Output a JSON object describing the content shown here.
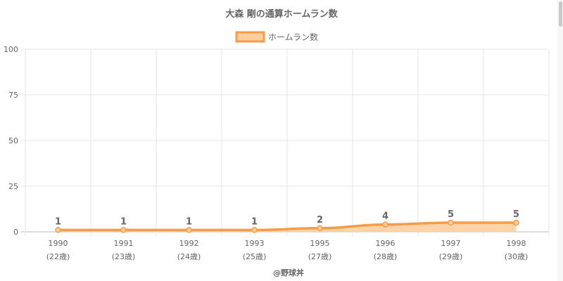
{
  "colors": {
    "line": "#f79b46",
    "fill": "#fdcf9e",
    "grid": "#e6e6e6",
    "text": "#666666",
    "label": "#666666"
  },
  "chart_data": {
    "type": "area",
    "title": "大森 剛の通算ホームラン数",
    "legend": {
      "position": "top",
      "label": "ホームラン数"
    },
    "x": [
      "1990",
      "1991",
      "1992",
      "1993",
      "1995",
      "1996",
      "1997",
      "1998"
    ],
    "x_sub": [
      "(22歳)",
      "(23歳)",
      "(24歳)",
      "(25歳)",
      "(27歳)",
      "(28歳)",
      "(29歳)",
      "(30歳)"
    ],
    "series": [
      {
        "name": "ホームラン数",
        "values": [
          1,
          1,
          1,
          1,
          2,
          4,
          5,
          5
        ]
      }
    ],
    "ylim": [
      0,
      100
    ],
    "yticks": [
      0,
      25,
      50,
      75,
      100
    ],
    "grid": true,
    "credit": "@野球丼"
  }
}
